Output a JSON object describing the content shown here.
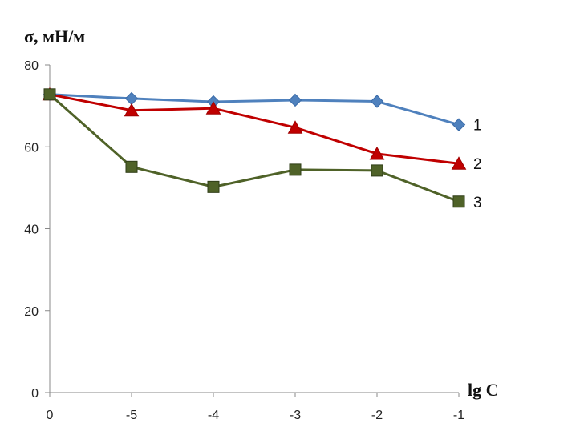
{
  "chart_data": {
    "type": "line",
    "title": "",
    "ylabel": "σ, мН/м",
    "xlabel": "lg C",
    "ylim": [
      0,
      80
    ],
    "yticks": [
      0,
      20,
      40,
      60,
      80
    ],
    "categories": [
      "0",
      "-5",
      "-4",
      "-3",
      "-2",
      "-1"
    ],
    "grid": false,
    "series": [
      {
        "name": "1",
        "marker": "diamond",
        "color": "#4F81BD",
        "values": [
          72.8,
          71.8,
          71.0,
          71.4,
          71.1,
          65.4
        ]
      },
      {
        "name": "2",
        "marker": "triangle",
        "color": "#C00000",
        "values": [
          72.8,
          68.9,
          69.4,
          64.7,
          58.3,
          55.9
        ]
      },
      {
        "name": "3",
        "marker": "square",
        "color": "#4F6228",
        "values": [
          72.8,
          55.1,
          50.2,
          54.4,
          54.2,
          46.6
        ]
      }
    ]
  }
}
